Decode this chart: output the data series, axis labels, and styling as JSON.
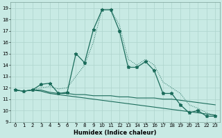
{
  "xlabel": "Humidex (Indice chaleur)",
  "xlim": [
    -0.5,
    23.5
  ],
  "ylim": [
    9,
    19.5
  ],
  "xticks": [
    0,
    1,
    2,
    3,
    4,
    5,
    6,
    7,
    8,
    9,
    10,
    11,
    12,
    13,
    14,
    15,
    16,
    17,
    18,
    19,
    20,
    21,
    22,
    23
  ],
  "yticks": [
    9,
    10,
    11,
    12,
    13,
    14,
    15,
    16,
    17,
    18,
    19
  ],
  "bg_color": "#c8eae4",
  "grid_color": "#aed4cc",
  "line_color": "#1a6b5a",
  "main_x": [
    0,
    1,
    2,
    3,
    4,
    5,
    6,
    7,
    8,
    9,
    10,
    11,
    12,
    13,
    14,
    15,
    16,
    17,
    18,
    19,
    20,
    21,
    22,
    23
  ],
  "main_y": [
    11.8,
    11.7,
    11.8,
    12.3,
    12.4,
    11.5,
    11.6,
    15.0,
    14.2,
    17.1,
    18.85,
    18.85,
    17.0,
    13.8,
    13.8,
    14.3,
    13.5,
    11.5,
    11.5,
    10.5,
    9.8,
    10.0,
    9.5,
    9.5
  ],
  "dotted_x": [
    0,
    1,
    2,
    3,
    4,
    5,
    6,
    7,
    8,
    9,
    10,
    11,
    12,
    13,
    14,
    15,
    16,
    17,
    18,
    19,
    20,
    21,
    22,
    23
  ],
  "dotted_y": [
    11.8,
    11.7,
    11.8,
    12.0,
    12.1,
    11.9,
    12.0,
    13.0,
    14.0,
    16.0,
    18.85,
    18.85,
    17.5,
    14.5,
    14.0,
    14.5,
    14.0,
    12.5,
    12.0,
    11.5,
    10.5,
    10.2,
    9.8,
    9.5
  ],
  "flat1_x": [
    0,
    1,
    2,
    3,
    4,
    5,
    6,
    7,
    8,
    9,
    10,
    11,
    12,
    13,
    14,
    15,
    16,
    17,
    18,
    19,
    20,
    21,
    22,
    23
  ],
  "flat1_y": [
    11.8,
    11.7,
    11.8,
    11.8,
    11.6,
    11.5,
    11.5,
    11.4,
    11.4,
    11.3,
    11.3,
    11.3,
    11.2,
    11.2,
    11.1,
    11.1,
    11.1,
    11.0,
    11.0,
    10.9,
    10.8,
    10.7,
    10.6,
    10.5
  ],
  "flat2_x": [
    0,
    1,
    2,
    3,
    4,
    5,
    6,
    7,
    8,
    9,
    10,
    11,
    12,
    13,
    14,
    15,
    16,
    17,
    18,
    19,
    20,
    21,
    22,
    23
  ],
  "flat2_y": [
    11.8,
    11.7,
    11.8,
    11.7,
    11.5,
    11.4,
    11.3,
    11.2,
    11.1,
    11.0,
    10.9,
    10.8,
    10.7,
    10.6,
    10.5,
    10.4,
    10.3,
    10.2,
    10.1,
    10.0,
    9.9,
    9.8,
    9.7,
    9.6
  ]
}
